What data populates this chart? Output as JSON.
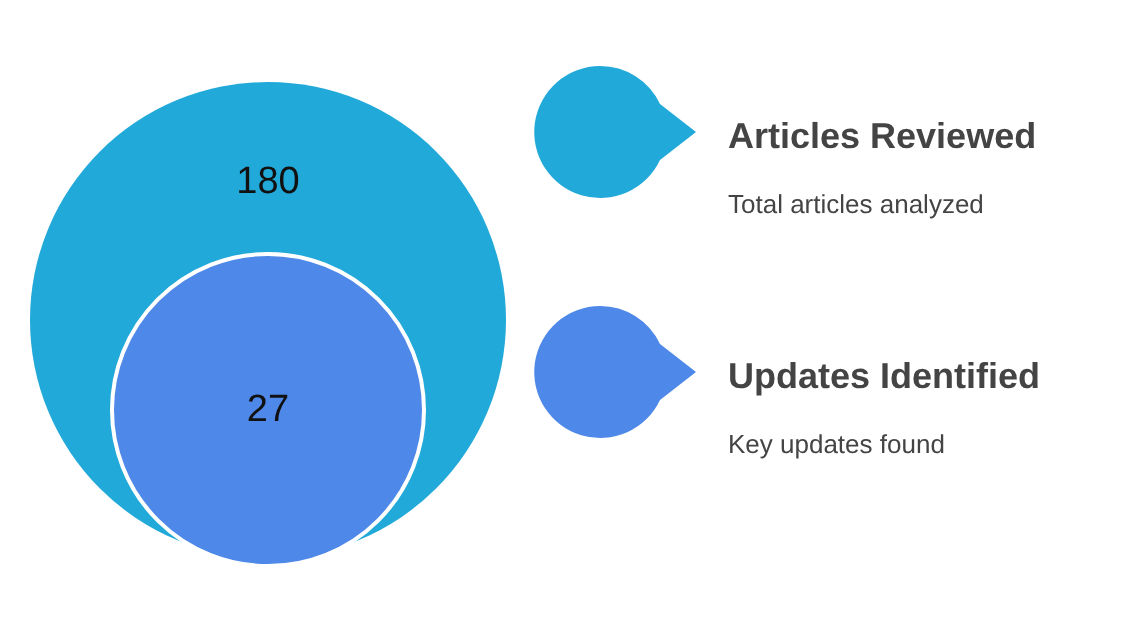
{
  "chart_data": {
    "type": "other",
    "categories": [
      "Articles Reviewed",
      "Updates Identified"
    ],
    "values": [
      180,
      27
    ],
    "colors": [
      "#21a9d9",
      "#4e88e8"
    ],
    "annotations": [
      "Total articles analyzed",
      "Key updates found"
    ],
    "data_labels": true
  }
}
